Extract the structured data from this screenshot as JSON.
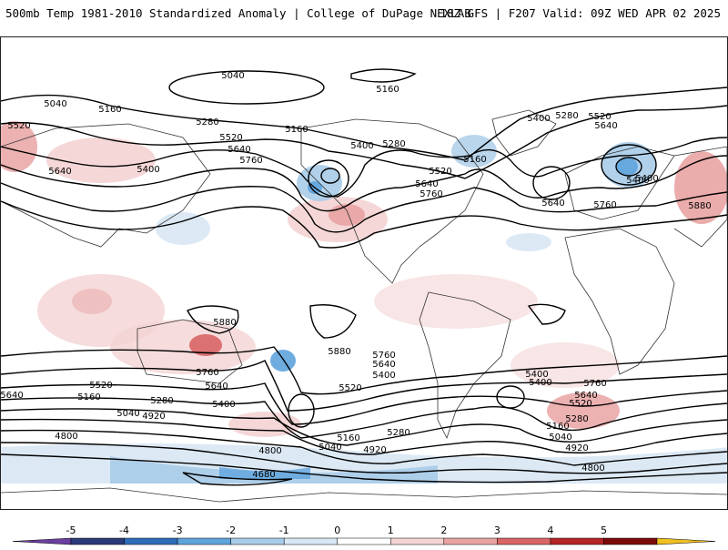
{
  "header": {
    "title": "500mb Temp 1981-2010 Standardized Anomaly | College of DuPage NEXLAB",
    "run_info": "18Z GFS | F207 Valid: 09Z WED APR 02 2025"
  },
  "contour_labels": [
    "5040",
    "5040",
    "5160",
    "5160",
    "5520",
    "5280",
    "5160",
    "5400",
    "5280",
    "5400",
    "5280",
    "5520",
    "5640",
    "5520",
    "5640",
    "5760",
    "5520",
    "5640",
    "5400",
    "5160",
    "5760",
    "5640",
    "5640",
    "5760",
    "5400",
    "5880",
    "5880",
    "5880",
    "5760",
    "5760",
    "5640",
    "5640",
    "5400",
    "5520",
    "5400",
    "5400",
    "5760",
    "5640",
    "5520",
    "5280",
    "5640",
    "5160",
    "5520",
    "5040",
    "5280",
    "4920",
    "5400",
    "5160",
    "5280",
    "5160",
    "5040",
    "4800",
    "4800",
    "5040",
    "4920",
    "4920",
    "4800",
    "4680",
    "5400"
  ],
  "colorbar": {
    "tick_labels": [
      "-5",
      "-4",
      "-3",
      "-2",
      "-1",
      "0",
      "1",
      "2",
      "3",
      "4",
      "5"
    ],
    "colors": [
      "#2b3a7a",
      "#2f6cb8",
      "#5fa3dd",
      "#a9cce9",
      "#d8e7f4",
      "#ffffff",
      "#f4d3d3",
      "#e9a3a3",
      "#d96565",
      "#b42525",
      "#7a0a0a"
    ],
    "arrow_low_color": "#6a3fa0",
    "arrow_high_color": "#f0c020"
  }
}
